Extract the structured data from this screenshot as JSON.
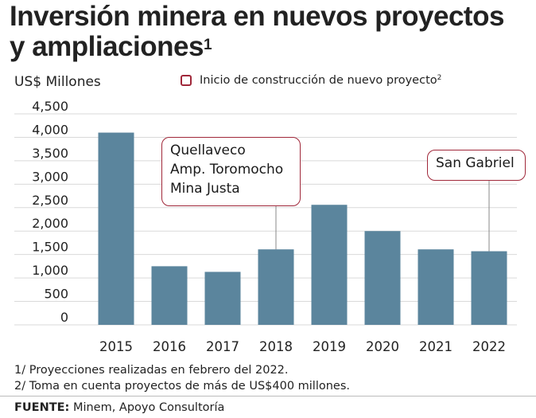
{
  "title_line1": "Inversión minera en nuevos proyectos",
  "title_line2": "y ampliaciones",
  "title_sup": "1",
  "unit_label": "US$ Millones",
  "legend_label": "Inicio de construcción de nuevo proyecto",
  "legend_sup": "2",
  "colors": {
    "bar": "#5b859d",
    "accent": "#a0283a",
    "grid": "#d9d9d9"
  },
  "chart_data": {
    "type": "bar",
    "categories": [
      "2015",
      "2016",
      "2017",
      "2018",
      "2019",
      "2020",
      "2021",
      "2022"
    ],
    "values": [
      4100,
      1250,
      1130,
      1610,
      2560,
      2000,
      1610,
      1570
    ],
    "ylim": [
      0,
      4500
    ],
    "yticks": [
      "0",
      "500",
      "1,000",
      "1,500",
      "2,000",
      "2,500",
      "3,000",
      "3,500",
      "4,000",
      "4,500"
    ],
    "grid": true,
    "annotations": [
      {
        "category": "2018",
        "lines": [
          "Quellaveco",
          "Amp. Toromocho",
          "Mina Justa"
        ]
      },
      {
        "category": "2022",
        "lines": [
          "San Gabriel"
        ]
      }
    ]
  },
  "notes": [
    "1/ Proyecciones realizadas en febrero del 2022.",
    "2/ Toma en cuenta proyectos de más de US$400 millones."
  ],
  "source_label": "FUENTE:",
  "source_text": "Minem, Apoyo Consultoría"
}
